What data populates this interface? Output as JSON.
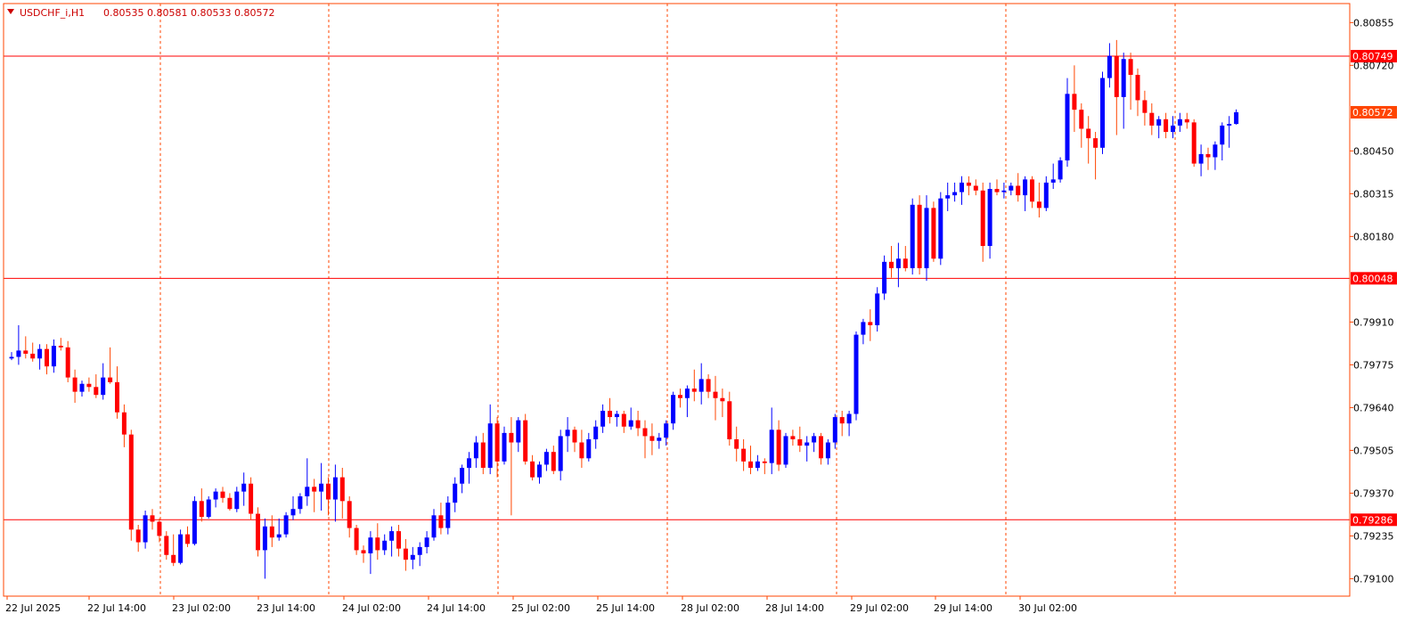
{
  "header": {
    "symbol": "USDCHF_i,H1",
    "ohlc": "0.80535 0.80581 0.80533 0.80572",
    "menu_icon": "triangle-down-icon"
  },
  "colors": {
    "background": "#ffffff",
    "bull": "#0000ff",
    "bear": "#ff0000",
    "wick_bull": "#0000ff",
    "wick_bear": "#ff4500",
    "grid": "#ff4500",
    "hline": "#ff0000",
    "axis": "#ff4500",
    "price_badge": "#ff4500"
  },
  "chart_data": {
    "type": "candlestick",
    "symbol": "USDCHF_i",
    "timeframe": "H1",
    "ylim": [
      0.79045,
      0.80915
    ],
    "y_ticks": [
      "0.80855",
      "0.80720",
      "0.80572",
      "0.80450",
      "0.80315",
      "0.80180",
      "0.80048",
      "0.79910",
      "0.79775",
      "0.79640",
      "0.79505",
      "0.79370",
      "0.79286",
      "0.79235",
      "0.79100"
    ],
    "x_ticks": [
      "22 Jul 2025",
      "22 Jul 14:00",
      "23 Jul 02:00",
      "23 Jul 14:00",
      "24 Jul 02:00",
      "24 Jul 14:00",
      "25 Jul 02:00",
      "25 Jul 14:00",
      "28 Jul 02:00",
      "28 Jul 14:00",
      "29 Jul 02:00",
      "29 Jul 14:00",
      "30 Jul 02:00"
    ],
    "grid": "vertical-dashed",
    "horizontal_levels": [
      {
        "price": 0.80749,
        "label": "0.80749"
      },
      {
        "price": 0.80048,
        "label": "0.80048"
      },
      {
        "price": 0.79286,
        "label": "0.79286"
      }
    ],
    "current_price": {
      "price": 0.80572,
      "label": "0.80572"
    },
    "candles": [
      [
        0.79795,
        0.79815,
        0.7979,
        0.798
      ],
      [
        0.798,
        0.799,
        0.79775,
        0.7982
      ],
      [
        0.7982,
        0.79865,
        0.79795,
        0.7981
      ],
      [
        0.7981,
        0.79845,
        0.79785,
        0.79795
      ],
      [
        0.79795,
        0.7984,
        0.7976,
        0.79825
      ],
      [
        0.79825,
        0.7984,
        0.79745,
        0.7977
      ],
      [
        0.7977,
        0.79855,
        0.7975,
        0.79835
      ],
      [
        0.79835,
        0.7986,
        0.7982,
        0.7983
      ],
      [
        0.7983,
        0.7985,
        0.7972,
        0.79735
      ],
      [
        0.79735,
        0.7976,
        0.79655,
        0.7969
      ],
      [
        0.7969,
        0.79725,
        0.79675,
        0.79715
      ],
      [
        0.79715,
        0.79735,
        0.7969,
        0.79705
      ],
      [
        0.79705,
        0.79745,
        0.7967,
        0.7968
      ],
      [
        0.7968,
        0.7978,
        0.79665,
        0.79735
      ],
      [
        0.79735,
        0.7983,
        0.79715,
        0.7972
      ],
      [
        0.7972,
        0.7977,
        0.79605,
        0.79625
      ],
      [
        0.79625,
        0.7965,
        0.79515,
        0.79555
      ],
      [
        0.79555,
        0.7957,
        0.7922,
        0.79255
      ],
      [
        0.79255,
        0.7927,
        0.79185,
        0.79215
      ],
      [
        0.79215,
        0.79315,
        0.79195,
        0.793
      ],
      [
        0.793,
        0.7932,
        0.79255,
        0.7928
      ],
      [
        0.7928,
        0.7929,
        0.79215,
        0.79235
      ],
      [
        0.79235,
        0.7925,
        0.7916,
        0.79175
      ],
      [
        0.79175,
        0.7924,
        0.7914,
        0.7915
      ],
      [
        0.7915,
        0.79255,
        0.79145,
        0.7924
      ],
      [
        0.7924,
        0.79265,
        0.792,
        0.7921
      ],
      [
        0.7921,
        0.7936,
        0.79205,
        0.79345
      ],
      [
        0.79345,
        0.79385,
        0.7928,
        0.79295
      ],
      [
        0.79295,
        0.7936,
        0.7929,
        0.7935
      ],
      [
        0.7935,
        0.79385,
        0.79325,
        0.79375
      ],
      [
        0.79375,
        0.7939,
        0.7934,
        0.79355
      ],
      [
        0.79355,
        0.7937,
        0.79315,
        0.7932
      ],
      [
        0.7932,
        0.7939,
        0.7931,
        0.79375
      ],
      [
        0.79375,
        0.79435,
        0.7933,
        0.794
      ],
      [
        0.794,
        0.7942,
        0.79285,
        0.79305
      ],
      [
        0.79305,
        0.79325,
        0.7917,
        0.7919
      ],
      [
        0.7919,
        0.7929,
        0.791,
        0.79265
      ],
      [
        0.79265,
        0.793,
        0.792,
        0.7923
      ],
      [
        0.7923,
        0.7929,
        0.7922,
        0.7924
      ],
      [
        0.7924,
        0.7931,
        0.7923,
        0.793
      ],
      [
        0.793,
        0.7936,
        0.79285,
        0.7932
      ],
      [
        0.7932,
        0.7937,
        0.79305,
        0.7936
      ],
      [
        0.7936,
        0.7948,
        0.7933,
        0.7939
      ],
      [
        0.7939,
        0.79415,
        0.7931,
        0.79375
      ],
      [
        0.79375,
        0.79465,
        0.79315,
        0.794
      ],
      [
        0.794,
        0.7942,
        0.793,
        0.7935
      ],
      [
        0.7935,
        0.7946,
        0.7928,
        0.7942
      ],
      [
        0.7942,
        0.7945,
        0.7929,
        0.79345
      ],
      [
        0.79345,
        0.7936,
        0.7923,
        0.7926
      ],
      [
        0.7926,
        0.7927,
        0.79175,
        0.7919
      ],
      [
        0.7919,
        0.79205,
        0.7915,
        0.7918
      ],
      [
        0.7918,
        0.7925,
        0.79115,
        0.7923
      ],
      [
        0.7923,
        0.79275,
        0.7916,
        0.7919
      ],
      [
        0.7919,
        0.7924,
        0.79175,
        0.7922
      ],
      [
        0.7922,
        0.79265,
        0.7917,
        0.7925
      ],
      [
        0.7925,
        0.7927,
        0.7917,
        0.79195
      ],
      [
        0.79195,
        0.79225,
        0.79125,
        0.7916
      ],
      [
        0.7916,
        0.792,
        0.7913,
        0.79175
      ],
      [
        0.79175,
        0.79215,
        0.7914,
        0.792
      ],
      [
        0.792,
        0.7925,
        0.7918,
        0.7923
      ],
      [
        0.7923,
        0.7932,
        0.7922,
        0.793
      ],
      [
        0.793,
        0.7934,
        0.7924,
        0.7926
      ],
      [
        0.7926,
        0.7936,
        0.7924,
        0.7934
      ],
      [
        0.7934,
        0.7942,
        0.7931,
        0.794
      ],
      [
        0.794,
        0.7946,
        0.7937,
        0.7945
      ],
      [
        0.7945,
        0.795,
        0.794,
        0.7948
      ],
      [
        0.7948,
        0.7955,
        0.7945,
        0.7953
      ],
      [
        0.7953,
        0.7956,
        0.7943,
        0.7945
      ],
      [
        0.7945,
        0.7965,
        0.7943,
        0.7959
      ],
      [
        0.7959,
        0.7961,
        0.7942,
        0.7947
      ],
      [
        0.7947,
        0.7958,
        0.7946,
        0.7956
      ],
      [
        0.7956,
        0.7961,
        0.793,
        0.7953
      ],
      [
        0.7953,
        0.7961,
        0.795,
        0.796
      ],
      [
        0.796,
        0.7962,
        0.7946,
        0.7947
      ],
      [
        0.7947,
        0.7949,
        0.7941,
        0.7942
      ],
      [
        0.7942,
        0.7947,
        0.794,
        0.7946
      ],
      [
        0.7946,
        0.7951,
        0.7944,
        0.795
      ],
      [
        0.795,
        0.7952,
        0.7943,
        0.7944
      ],
      [
        0.7944,
        0.7957,
        0.7941,
        0.7955
      ],
      [
        0.7955,
        0.7961,
        0.795,
        0.7957
      ],
      [
        0.7957,
        0.7958,
        0.795,
        0.7953
      ],
      [
        0.7953,
        0.7957,
        0.7945,
        0.7948
      ],
      [
        0.7948,
        0.7956,
        0.7947,
        0.7954
      ],
      [
        0.7954,
        0.796,
        0.7951,
        0.7958
      ],
      [
        0.7958,
        0.7965,
        0.7956,
        0.7963
      ],
      [
        0.7963,
        0.7967,
        0.7959,
        0.7961
      ],
      [
        0.7961,
        0.7963,
        0.7958,
        0.7962
      ],
      [
        0.7962,
        0.7963,
        0.7956,
        0.7958
      ],
      [
        0.7958,
        0.7964,
        0.7957,
        0.796
      ],
      [
        0.796,
        0.7963,
        0.7955,
        0.79575
      ],
      [
        0.79575,
        0.796,
        0.7948,
        0.7955
      ],
      [
        0.7955,
        0.7959,
        0.7949,
        0.79535
      ],
      [
        0.79535,
        0.7956,
        0.7951,
        0.79545
      ],
      [
        0.79545,
        0.796,
        0.7952,
        0.7959
      ],
      [
        0.7959,
        0.7969,
        0.7957,
        0.7968
      ],
      [
        0.7968,
        0.797,
        0.7964,
        0.7967
      ],
      [
        0.7967,
        0.7971,
        0.7961,
        0.797
      ],
      [
        0.797,
        0.7976,
        0.7966,
        0.7969
      ],
      [
        0.7969,
        0.7978,
        0.7965,
        0.7973
      ],
      [
        0.7973,
        0.79745,
        0.7967,
        0.7969
      ],
      [
        0.7969,
        0.7974,
        0.796,
        0.7967
      ],
      [
        0.7967,
        0.797,
        0.7961,
        0.7966
      ],
      [
        0.7966,
        0.7969,
        0.7952,
        0.7954
      ],
      [
        0.7954,
        0.7958,
        0.7947,
        0.7951
      ],
      [
        0.7951,
        0.7954,
        0.7944,
        0.7947
      ],
      [
        0.7947,
        0.7952,
        0.7943,
        0.7945
      ],
      [
        0.7945,
        0.7949,
        0.7944,
        0.7947
      ],
      [
        0.7947,
        0.7948,
        0.7943,
        0.79465
      ],
      [
        0.79465,
        0.7964,
        0.7943,
        0.7957
      ],
      [
        0.7957,
        0.796,
        0.7944,
        0.7946
      ],
      [
        0.7946,
        0.7956,
        0.7945,
        0.7955
      ],
      [
        0.7955,
        0.7957,
        0.7952,
        0.7954
      ],
      [
        0.7954,
        0.7958,
        0.795,
        0.7952
      ],
      [
        0.7952,
        0.7955,
        0.7947,
        0.7953
      ],
      [
        0.7953,
        0.7956,
        0.795,
        0.7955
      ],
      [
        0.7955,
        0.7956,
        0.7946,
        0.7948
      ],
      [
        0.7948,
        0.7954,
        0.7946,
        0.7953
      ],
      [
        0.7953,
        0.7962,
        0.7951,
        0.7961
      ],
      [
        0.7961,
        0.7963,
        0.7955,
        0.7959
      ],
      [
        0.7959,
        0.7963,
        0.7955,
        0.7962
      ],
      [
        0.7962,
        0.7988,
        0.796,
        0.7987
      ],
      [
        0.7987,
        0.7992,
        0.7984,
        0.7991
      ],
      [
        0.7991,
        0.7995,
        0.7985,
        0.799
      ],
      [
        0.799,
        0.8002,
        0.7988,
        0.8
      ],
      [
        0.8,
        0.8012,
        0.7998,
        0.801
      ],
      [
        0.801,
        0.8015,
        0.8005,
        0.8008
      ],
      [
        0.8008,
        0.8016,
        0.8002,
        0.8011
      ],
      [
        0.8011,
        0.8015,
        0.8007,
        0.8008
      ],
      [
        0.8008,
        0.803,
        0.8006,
        0.8028
      ],
      [
        0.8028,
        0.8031,
        0.8006,
        0.8008
      ],
      [
        0.8008,
        0.8031,
        0.8004,
        0.8027
      ],
      [
        0.8027,
        0.8029,
        0.801,
        0.8011
      ],
      [
        0.8011,
        0.8032,
        0.8009,
        0.803
      ],
      [
        0.803,
        0.8035,
        0.8026,
        0.8031
      ],
      [
        0.8031,
        0.8035,
        0.8029,
        0.8032
      ],
      [
        0.8032,
        0.8037,
        0.8028,
        0.8035
      ],
      [
        0.8035,
        0.8037,
        0.8031,
        0.8034
      ],
      [
        0.8034,
        0.8036,
        0.8031,
        0.80325
      ],
      [
        0.80325,
        0.8035,
        0.801,
        0.8015
      ],
      [
        0.8015,
        0.8035,
        0.8011,
        0.8033
      ],
      [
        0.8033,
        0.8036,
        0.8031,
        0.8032
      ],
      [
        0.8032,
        0.8035,
        0.803,
        0.80325
      ],
      [
        0.80325,
        0.8035,
        0.8031,
        0.8034
      ],
      [
        0.8034,
        0.8038,
        0.8029,
        0.8031
      ],
      [
        0.8031,
        0.8037,
        0.8026,
        0.8036
      ],
      [
        0.8036,
        0.8037,
        0.8027,
        0.8029
      ],
      [
        0.8029,
        0.8035,
        0.8024,
        0.8027
      ],
      [
        0.8027,
        0.8037,
        0.8026,
        0.8035
      ],
      [
        0.8035,
        0.8041,
        0.8033,
        0.8036
      ],
      [
        0.8036,
        0.8043,
        0.8035,
        0.8042
      ],
      [
        0.8042,
        0.8068,
        0.804,
        0.8063
      ],
      [
        0.8063,
        0.8072,
        0.8051,
        0.8058
      ],
      [
        0.8058,
        0.806,
        0.8046,
        0.8052
      ],
      [
        0.8052,
        0.8056,
        0.8041,
        0.8049
      ],
      [
        0.8049,
        0.8051,
        0.8036,
        0.8046
      ],
      [
        0.8046,
        0.807,
        0.8044,
        0.8068
      ],
      [
        0.8068,
        0.8079,
        0.8065,
        0.8075
      ],
      [
        0.8075,
        0.808,
        0.805,
        0.8062
      ],
      [
        0.8062,
        0.8076,
        0.8052,
        0.8074
      ],
      [
        0.8074,
        0.8076,
        0.8058,
        0.8069
      ],
      [
        0.8069,
        0.8071,
        0.8056,
        0.8061
      ],
      [
        0.8061,
        0.8064,
        0.8053,
        0.8057
      ],
      [
        0.8057,
        0.806,
        0.805,
        0.8053
      ],
      [
        0.8053,
        0.8056,
        0.8049,
        0.8055
      ],
      [
        0.8055,
        0.8057,
        0.8049,
        0.8051
      ],
      [
        0.8051,
        0.8056,
        0.8049,
        0.8053
      ],
      [
        0.8053,
        0.8057,
        0.8051,
        0.8055
      ],
      [
        0.8055,
        0.8057,
        0.8052,
        0.8054
      ],
      [
        0.8054,
        0.8055,
        0.804,
        0.8041
      ],
      [
        0.8041,
        0.8047,
        0.8037,
        0.8044
      ],
      [
        0.8044,
        0.8046,
        0.8039,
        0.8043
      ],
      [
        0.8043,
        0.8048,
        0.8039,
        0.8047
      ],
      [
        0.8047,
        0.8054,
        0.8042,
        0.8053
      ],
      [
        0.8053,
        0.8056,
        0.8046,
        0.80535
      ],
      [
        0.80535,
        0.80581,
        0.80533,
        0.80572
      ]
    ]
  }
}
